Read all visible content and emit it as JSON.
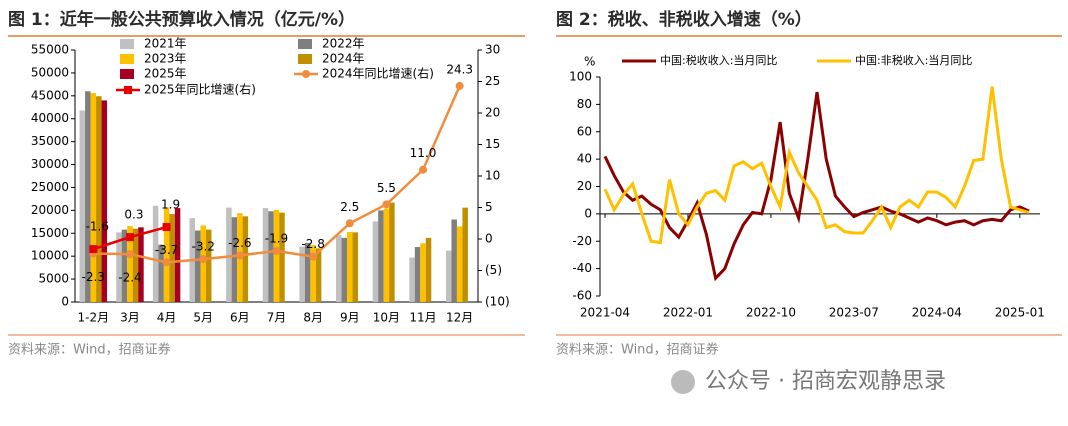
{
  "chart_data": [
    {
      "type": "bar",
      "title": "图 1：近年一般公共预算收入情况（亿元/%）",
      "source": "资料来源：Wind，招商证券",
      "categories": [
        "1-2月",
        "3月",
        "4月",
        "5月",
        "6月",
        "7月",
        "8月",
        "9月",
        "10月",
        "11月",
        "12月"
      ],
      "series": [
        {
          "name": "2021年",
          "color": "#c0c0c0",
          "values": [
            41800,
            15200,
            21000,
            18300,
            20600,
            20500,
            12100,
            14600,
            17600,
            9700,
            11200
          ]
        },
        {
          "name": "2022年",
          "color": "#7f7f7f",
          "values": [
            46000,
            15800,
            12500,
            15600,
            18500,
            19800,
            12900,
            14000,
            20000,
            12000,
            18000
          ]
        },
        {
          "name": "2023年",
          "color": "#ffc000",
          "values": [
            45600,
            16600,
            20600,
            16700,
            19400,
            20100,
            12400,
            15300,
            20400,
            12800,
            16500
          ]
        },
        {
          "name": "2024年",
          "color": "#bf8f00",
          "values": [
            44900,
            16000,
            19200,
            15800,
            18700,
            19500,
            11700,
            15200,
            21700,
            14000,
            20600
          ]
        },
        {
          "name": "2025年",
          "color": "#a50021",
          "values": [
            44000,
            16300,
            20500,
            null,
            null,
            null,
            null,
            null,
            null,
            null,
            null
          ]
        },
        {
          "name": "2024年同比增速(右)",
          "type": "line",
          "axis": "y2",
          "color": "#f08c3c",
          "values": [
            -2.3,
            -2.4,
            -3.7,
            -3.2,
            -2.6,
            -1.9,
            -2.8,
            2.5,
            5.5,
            11.0,
            24.3
          ],
          "value_labels": [
            "-2.3",
            "-2.4",
            "-3.7",
            "-3.2",
            "-2.6",
            "-1.9",
            "-2.8",
            "2.5",
            "5.5",
            "11.0",
            "24.3"
          ]
        },
        {
          "name": "2025年同比增速(右)",
          "type": "line",
          "axis": "y2",
          "color": "#e60000",
          "values": [
            -1.6,
            0.3,
            1.9,
            null,
            null,
            null,
            null,
            null,
            null,
            null,
            null
          ],
          "value_labels": [
            "-1.6",
            "0.3",
            "1.9",
            null,
            null,
            null,
            null,
            null,
            null,
            null,
            null
          ]
        }
      ],
      "ylim": [
        0,
        55000
      ],
      "yticks": [
        0,
        5000,
        10000,
        15000,
        20000,
        25000,
        30000,
        35000,
        40000,
        45000,
        50000,
        55000
      ],
      "y2lim": [
        -10,
        30
      ],
      "y2ticks": [
        {
          "value": -10,
          "label": "(10)"
        },
        {
          "value": -5,
          "label": "(5)"
        },
        0,
        5,
        10,
        15,
        20,
        25,
        30
      ]
    },
    {
      "type": "line",
      "title": "图 2：税收、非税收入增速（%）",
      "source": "资料来源：Wind，招商证券",
      "y_label": "%",
      "categories": [
        "2021-04",
        null,
        null,
        null,
        null,
        null,
        null,
        null,
        null,
        "2022-01",
        null,
        null,
        null,
        null,
        null,
        null,
        null,
        null,
        "2022-10",
        null,
        null,
        null,
        null,
        null,
        null,
        null,
        null,
        "2023-07",
        null,
        null,
        null,
        null,
        null,
        null,
        null,
        null,
        "2024-04",
        null,
        null,
        null,
        null,
        null,
        null,
        null,
        null,
        "2025-01",
        null
      ],
      "series": [
        {
          "name": "中国:税收收入:当月同比",
          "color": "#8b0000",
          "values": [
            42,
            28,
            16,
            10,
            13,
            7,
            3,
            -10,
            -17,
            -5,
            8,
            -15,
            -47,
            -40,
            -22,
            -8,
            1,
            0,
            25,
            67,
            15,
            -3,
            40,
            89,
            40,
            13,
            5,
            -2,
            1,
            3,
            5,
            2,
            0,
            -3,
            -6,
            -3,
            -5,
            -8,
            -6,
            -5,
            -8,
            -5,
            -4,
            -5,
            3,
            5,
            2
          ]
        },
        {
          "name": "中国:非税收入:当月同比",
          "color": "#ffc000",
          "values": [
            18,
            3,
            14,
            22,
            0,
            -20,
            -21,
            25,
            0,
            -8,
            5,
            15,
            17,
            10,
            35,
            38,
            33,
            37,
            20,
            5,
            45,
            30,
            20,
            10,
            -10,
            -8,
            -13,
            -14,
            -14,
            -5,
            5,
            -10,
            5,
            10,
            5,
            16,
            16,
            12,
            5,
            20,
            39,
            40,
            93,
            40,
            5,
            3,
            1
          ]
        }
      ],
      "ylim": [
        -60,
        100
      ],
      "yticks": [
        -60,
        -40,
        -20,
        0,
        20,
        40,
        60,
        80,
        100
      ]
    }
  ],
  "watermark": "公众号 · 招商宏观静思录"
}
